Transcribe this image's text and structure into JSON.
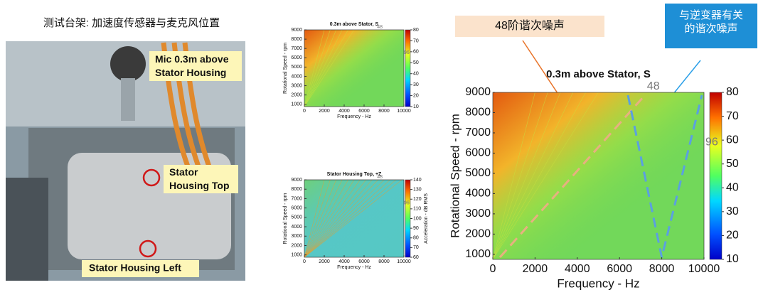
{
  "title": "测试台架: 加速度传感器与麦克风位置",
  "photo_labels": [
    "Mic 0.3m above Stator Housing",
    "Stator Housing Top",
    "Stator Housing Left"
  ],
  "callouts": [
    "48阶谐次噪声",
    "与逆变器有关的谐次噪声"
  ],
  "chart_data": [
    {
      "type": "heatmap",
      "title": "0.3m above Stator, S",
      "xlabel": "Frequency - Hz",
      "ylabel": "Rotational Speed - rpm",
      "xlim": [
        0,
        10000
      ],
      "xticks": [
        0,
        2000,
        4000,
        6000,
        8000,
        10000
      ],
      "ylim": [
        750,
        9000
      ],
      "yticks": [
        1000,
        2000,
        3000,
        4000,
        5000,
        6000,
        7000,
        8000,
        9000
      ],
      "clim": [
        10,
        80
      ],
      "cticks": [
        10,
        20,
        30,
        40,
        50,
        60,
        70,
        80
      ],
      "annotations": [
        "48",
        "96"
      ]
    },
    {
      "type": "heatmap",
      "title": "Stator Housing Top, +Z",
      "xlabel": "Frequency - Hz",
      "ylabel": "Rotational Speed - rpm",
      "colorbar_label": "Acceleration - dB RMS",
      "xlim": [
        0,
        10000
      ],
      "xticks": [
        0,
        2000,
        4000,
        6000,
        8000,
        10000
      ],
      "ylim": [
        750,
        9000
      ],
      "yticks": [
        1000,
        2000,
        3000,
        4000,
        5000,
        6000,
        7000,
        8000,
        9000
      ],
      "clim": [
        60,
        140
      ],
      "cticks": [
        60,
        70,
        80,
        90,
        100,
        110,
        120,
        130,
        140
      ],
      "annotations": [
        "48",
        "96"
      ]
    },
    {
      "type": "heatmap",
      "title": "0.3m above Stator, S",
      "xlabel": "Frequency - Hz",
      "ylabel": "Rotational Speed - rpm",
      "xlim": [
        0,
        10000
      ],
      "xticks": [
        0,
        2000,
        4000,
        6000,
        8000,
        10000
      ],
      "ylim": [
        750,
        9000
      ],
      "yticks": [
        1000,
        2000,
        3000,
        4000,
        5000,
        6000,
        7000,
        8000,
        9000
      ],
      "clim": [
        10,
        80
      ],
      "cticks": [
        10,
        20,
        30,
        40,
        50,
        60,
        70,
        80
      ],
      "annotations": [
        "48",
        "96"
      ]
    }
  ]
}
